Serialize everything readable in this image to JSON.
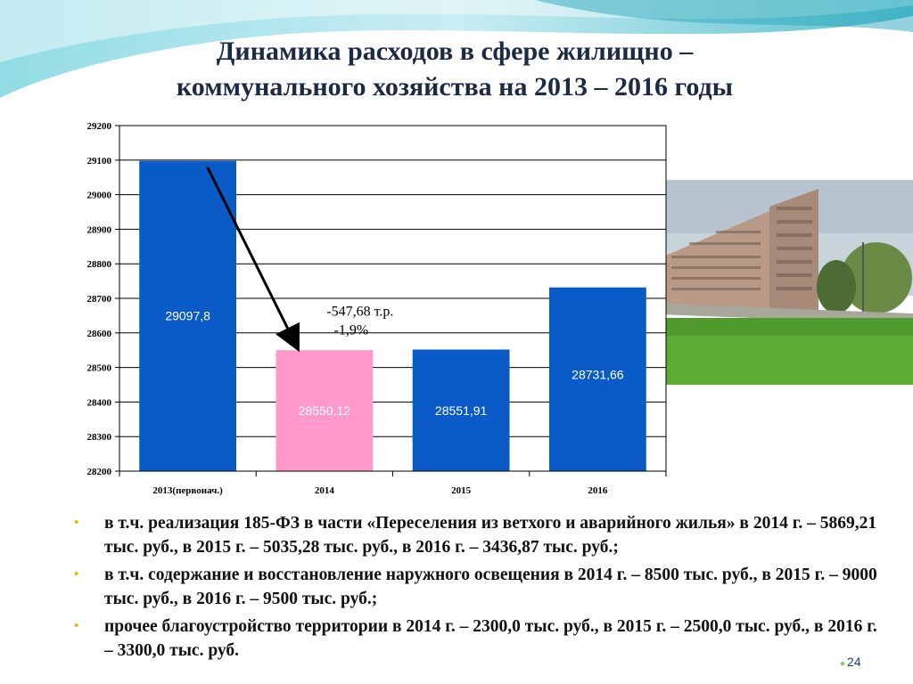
{
  "slide": {
    "title_line1": "Динамика расходов в сфере жилищно –",
    "title_line2": "коммунального хозяйства на 2013 – 2016 годы",
    "page_number": "24"
  },
  "colors": {
    "bar_blue": "#0a5bc7",
    "bar_pink": "#ff99cc",
    "bullet_dot": "#e8b800",
    "wave_teal": "#3fb6c7"
  },
  "chart_data": {
    "type": "bar",
    "categories": [
      "2013(первонач.)",
      "2014",
      "2015",
      "2016"
    ],
    "values": [
      29097.8,
      28550.12,
      28551.91,
      28731.66
    ],
    "value_labels": [
      "29097,8",
      "28550,12",
      "28551,91",
      "28731,66"
    ],
    "bar_colors": [
      "#0a5bc7",
      "#ff99cc",
      "#0a5bc7",
      "#0a5bc7"
    ],
    "ylim": [
      28200,
      29200
    ],
    "yticks": [
      "28200",
      "28300",
      "28400",
      "28500",
      "28600",
      "28700",
      "28800",
      "28900",
      "29000",
      "29100",
      "29200"
    ],
    "grid": true,
    "annotation": {
      "line1": "-547,68 т.р.",
      "line2": "-1,9%",
      "arrow_from": "2013(первонач.)",
      "arrow_to": "2014"
    }
  },
  "bullets": [
    "в т.ч. реализация 185-ФЗ в части «Переселения из ветхого и аварийного жилья» в 2014 г. – 5869,21 тыс. руб., в 2015 г. – 5035,28 тыс. руб., в 2016 г. – 3436,87 тыс. руб.;",
    "в т.ч. содержание и восстановление наружного освещения в 2014 г. – 8500 тыс. руб., в 2015 г. – 9000 тыс. руб., в 2016 г. – 9500 тыс. руб.;",
    "прочее благоустройство территории в 2014 г. – 2300,0 тыс. руб., в 2015 г. – 2500,0 тыс. руб., в 2016 г. – 3300,0 тыс. руб."
  ],
  "bullet_glyph": "•",
  "photo": {
    "subject": "apartment-building-photo"
  }
}
